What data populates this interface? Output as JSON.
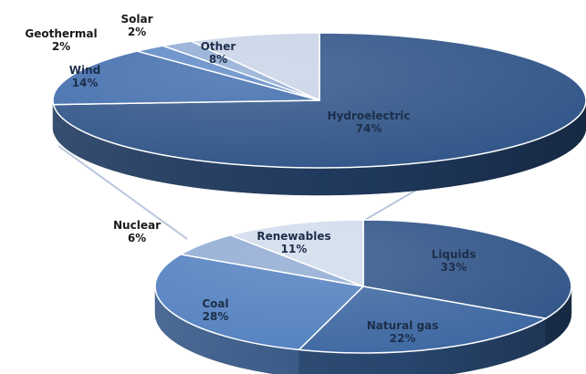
{
  "chart_data": [
    {
      "type": "pie",
      "title": "",
      "slices": [
        {
          "label": "Hydroelectric",
          "value": 74,
          "display": "74%",
          "color": "#2d5286"
        },
        {
          "label": "Wind",
          "value": 14,
          "display": "14%",
          "color": "#3d6aab"
        },
        {
          "label": "Geothermal",
          "value": 2,
          "display": "2%",
          "color": "#5a86c4"
        },
        {
          "label": "Solar",
          "value": 2,
          "display": "2%",
          "color": "#8eaad3"
        },
        {
          "label": "Other",
          "value": 8,
          "display": "8%",
          "color": "#c8d3e6"
        }
      ]
    },
    {
      "type": "pie",
      "title": "",
      "slices": [
        {
          "label": "Liquids",
          "value": 33,
          "display": "33%",
          "color": "#2d5286"
        },
        {
          "label": "Natural gas",
          "value": 22,
          "display": "22%",
          "color": "#3a65a0"
        },
        {
          "label": "Coal",
          "value": 28,
          "display": "28%",
          "color": "#4e7dbe"
        },
        {
          "label": "Nuclear",
          "value": 6,
          "display": "6%",
          "color": "#8ea9d2"
        },
        {
          "label": "Renewables",
          "value": 11,
          "display": "11%",
          "color": "#d0dbeb"
        }
      ]
    }
  ]
}
